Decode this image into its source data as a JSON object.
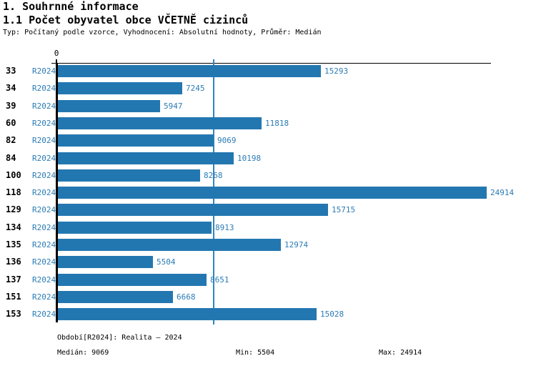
{
  "page": {
    "title1": "1. Souhrnné informace",
    "title2": "1.1 Počet obyvatel obce VČETNĚ cizinců",
    "meta": "Typ: Počítaný podle vzorce, Vyhodnocení: Absolutní hodnoty, Průměr: Medián"
  },
  "chart_data": {
    "type": "bar",
    "orientation": "horizontal",
    "title": "1.1 Počet obyvatel obce VČETNĚ cizinců",
    "categories": [
      "33",
      "34",
      "39",
      "60",
      "82",
      "84",
      "100",
      "118",
      "129",
      "134",
      "135",
      "136",
      "137",
      "151",
      "153"
    ],
    "series_label": "R2024",
    "values": [
      15293,
      7245,
      5947,
      11818,
      9069,
      10198,
      8268,
      24914,
      15715,
      8913,
      12974,
      5504,
      8651,
      6668,
      15028
    ],
    "axis": {
      "origin_label": "0",
      "xmin": 0,
      "xmax": 24914
    },
    "median_line_value": 9069,
    "legend_position": "none",
    "grid": "median-only",
    "colors": {
      "bar": "#2377b1",
      "value_text": "#2b7cb5",
      "median_line": "#2e86c1",
      "axis": "#000000"
    }
  },
  "footer": {
    "period": "Období[R2024]: Realita – 2024",
    "median": "Medián: 9069",
    "min": "Min: 5504",
    "max": "Max: 24914"
  }
}
